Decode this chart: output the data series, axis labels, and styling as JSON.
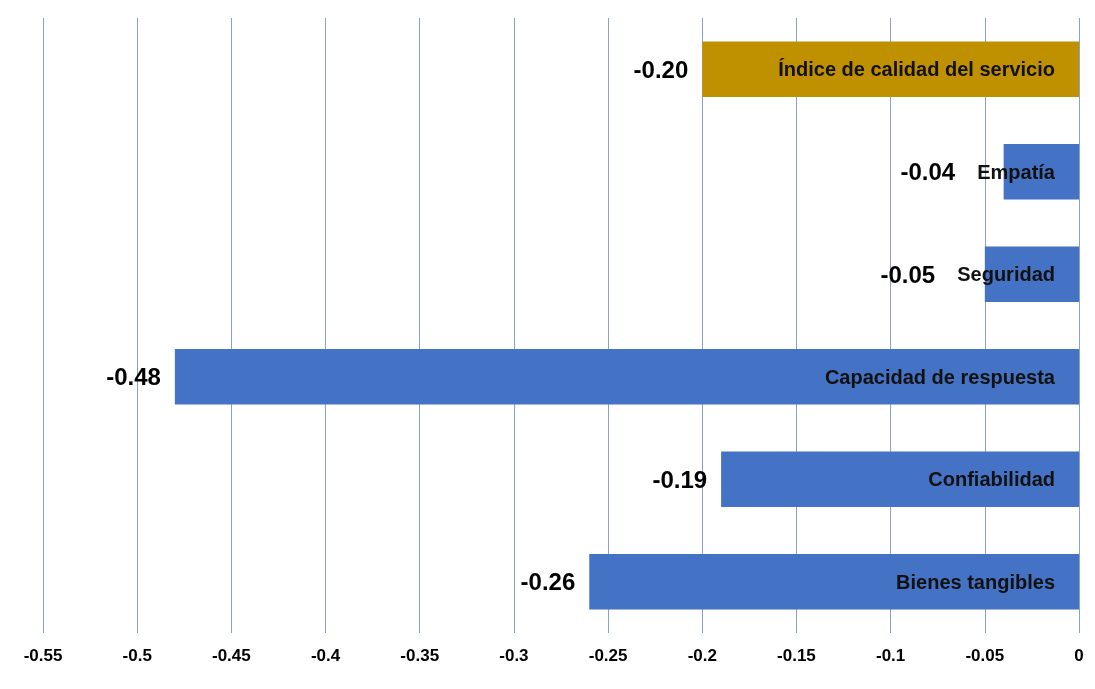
{
  "chart_data": {
    "type": "bar",
    "orientation": "horizontal",
    "categories": [
      "Índice de calidad del servicio",
      "Empatía",
      "Seguridad",
      "Capacidad de respuesta",
      "Confiabilidad",
      "Bienes tangibles"
    ],
    "values": [
      -0.2,
      -0.04,
      -0.05,
      -0.48,
      -0.19,
      -0.26
    ],
    "value_labels": [
      "-0.20",
      "-0.04",
      "-0.05",
      "-0.48",
      "-0.19",
      "-0.26"
    ],
    "colors": [
      "#bf9000",
      "#4472c4",
      "#4472c4",
      "#4472c4",
      "#4472c4",
      "#4472c4"
    ],
    "xlim": [
      -0.55,
      0
    ],
    "xticks": [
      -0.55,
      -0.5,
      -0.45,
      -0.4,
      -0.35,
      -0.3,
      -0.25,
      -0.2,
      -0.15,
      -0.1,
      -0.05,
      0
    ],
    "grid": "x"
  }
}
